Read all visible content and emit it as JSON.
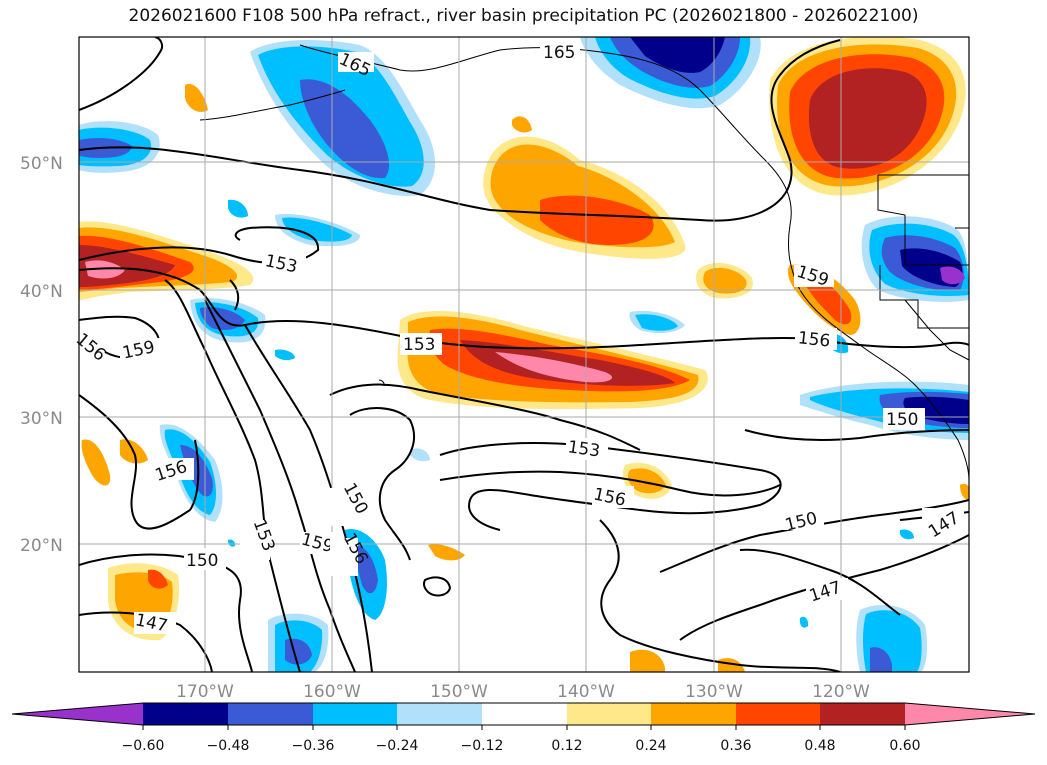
{
  "title": "2026021600 F108 500 hPa refract., river basin precipitation PC (2026021800 - 2026022100)",
  "map": {
    "lat_ticks": [
      "50°N",
      "40°N",
      "30°N",
      "20°N"
    ],
    "lon_ticks": [
      "170°W",
      "160°W",
      "150°W",
      "140°W",
      "130°W",
      "120°W"
    ],
    "contour_labels": [
      "165",
      "165",
      "153",
      "153",
      "159",
      "159",
      "156",
      "156",
      "156",
      "153",
      "156",
      "150",
      "153",
      "159",
      "156",
      "150",
      "150",
      "147",
      "147",
      "150",
      "147"
    ],
    "contour_levels": [
      147,
      150,
      153,
      156,
      159,
      165
    ]
  },
  "colorbar": {
    "tick_labels": [
      "−0.60",
      "−0.48",
      "−0.36",
      "−0.24",
      "−0.12",
      "0.12",
      "0.24",
      "0.36",
      "0.48",
      "0.60"
    ],
    "colors": [
      "#9932cc",
      "#00008b",
      "#3b5bd6",
      "#00bfff",
      "#b0e0fa",
      "#ffffff",
      "#ffe88a",
      "#ffa500",
      "#ff4500",
      "#b22222",
      "#ff88aa"
    ]
  }
}
